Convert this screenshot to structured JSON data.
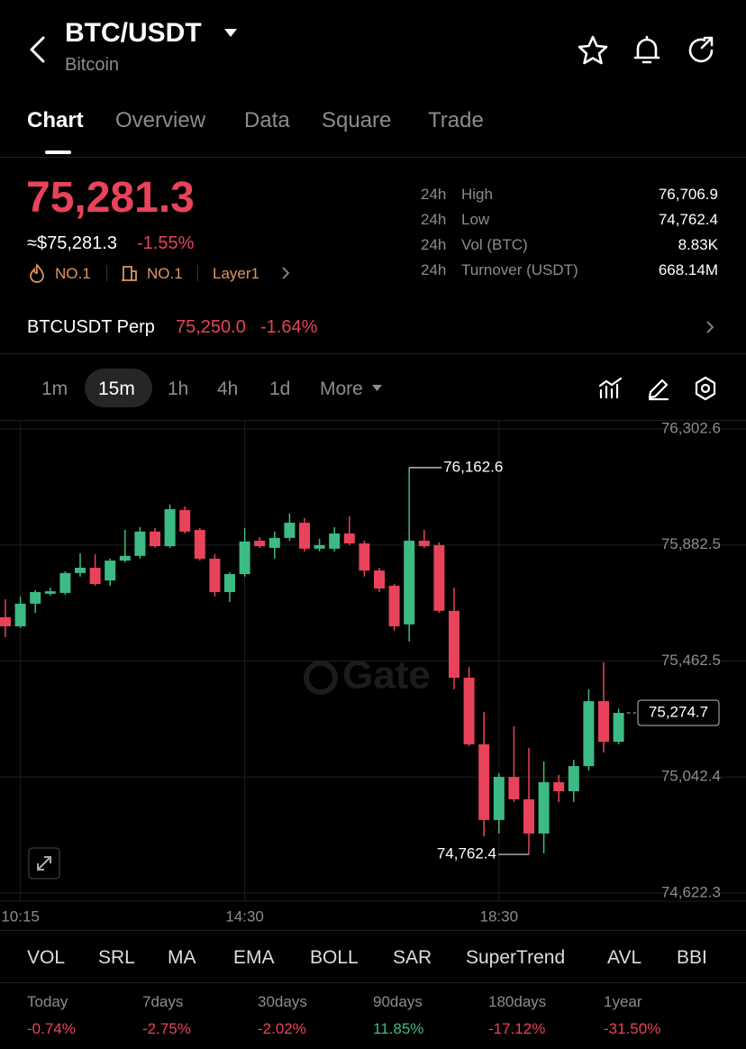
{
  "header": {
    "title": "BTC/USDT",
    "subtitle": "Bitcoin"
  },
  "tabs": [
    "Chart",
    "Overview",
    "Data",
    "Square",
    "Trade"
  ],
  "price": {
    "last": "75,281.3",
    "approx": "≈$75,281.3",
    "change": "-1.55%",
    "tags": [
      "NO.1",
      "NO.1",
      "Layer1"
    ]
  },
  "stats": [
    [
      "24h",
      "High",
      "76,706.9"
    ],
    [
      "24h",
      "Low",
      "74,762.4"
    ],
    [
      "24h",
      "Vol (BTC)",
      "8.83K"
    ],
    [
      "24h",
      "Turnover (USDT)",
      "668.14M"
    ]
  ],
  "perp": {
    "name": "BTCUSDT Perp",
    "price": "75,250.0",
    "change": "-1.64%"
  },
  "intervals": [
    "1m",
    "15m",
    "1h",
    "4h",
    "1d",
    "More"
  ],
  "chart_data": {
    "type": "candlestick",
    "watermark": "Gate",
    "categories": [
      null,
      "10:15",
      null,
      null,
      null,
      null,
      null,
      null,
      null,
      null,
      null,
      null,
      null,
      null,
      null,
      null,
      "14:30",
      null,
      null,
      null,
      null,
      null,
      null,
      null,
      null,
      null,
      null,
      null,
      null,
      null,
      null,
      null,
      null,
      "18:30",
      null,
      null,
      null,
      null,
      null,
      null,
      null,
      null
    ],
    "open": [
      75621,
      75588,
      75670,
      75706,
      75709,
      75781,
      75800,
      75754,
      75826,
      75843,
      75931,
      75878,
      76009,
      75937,
      75833,
      75712,
      75777,
      75898,
      75872,
      75908,
      75963,
      75869,
      75869,
      75924,
      75888,
      75790,
      75735,
      75595,
      75898,
      75882,
      75644,
      75402,
      75161,
      74887,
      75043,
      74962,
      74838,
      75024,
      74991,
      75082,
      75317,
      75170
    ],
    "high": [
      75686,
      75696,
      75719,
      75728,
      75787,
      75852,
      75849,
      75833,
      75937,
      75947,
      75944,
      76029,
      76022,
      75944,
      75849,
      75784,
      75944,
      75911,
      75931,
      75996,
      75980,
      75905,
      75947,
      75986,
      75898,
      75800,
      75741,
      76162.6,
      75937,
      75892,
      75728,
      75441,
      75278,
      75056,
      75226,
      75148,
      75099,
      75050,
      75105,
      75360,
      75458,
      75290
    ],
    "low": [
      75549,
      75582,
      75637,
      75699,
      75702,
      75768,
      75735,
      75735,
      75820,
      75833,
      75872,
      75872,
      75924,
      75826,
      75696,
      75676,
      75768,
      75872,
      75833,
      75898,
      75859,
      75859,
      75859,
      75882,
      75768,
      75712,
      75572,
      75533,
      75872,
      75637,
      75360,
      75154,
      74828,
      74838,
      74952,
      74762.4,
      74766,
      74952,
      74952,
      75066,
      75131,
      75161
    ],
    "close": [
      75588,
      75670,
      75712,
      75715,
      75781,
      75800,
      75741,
      75826,
      75843,
      75931,
      75878,
      76012,
      75931,
      75833,
      75712,
      75777,
      75895,
      75878,
      75908,
      75963,
      75869,
      75882,
      75924,
      75888,
      75790,
      75725,
      75588,
      75898,
      75878,
      75644,
      75402,
      75161,
      74887,
      75043,
      74962,
      74838,
      75024,
      74991,
      75082,
      75317,
      75170,
      75274.7
    ],
    "up_color": "#3dbb84",
    "down_color": "#e8435a",
    "ylim": [
      74593,
      76335
    ],
    "yticks": [
      {
        "value": 74622.3,
        "label": "74,622.3"
      },
      {
        "value": 75042.4,
        "label": "75,042.4"
      },
      {
        "value": 75462.5,
        "label": "75,462.5"
      },
      {
        "value": 75882.5,
        "label": "75,882.5"
      },
      {
        "value": 76302.6,
        "label": "76,302.6"
      }
    ],
    "grid": true,
    "high_label": "76,162.6",
    "low_label": "74,762.4",
    "last_label": "75,274.7"
  },
  "indicators": [
    "VOL",
    "SRL",
    "MA",
    "EMA",
    "BOLL",
    "SAR",
    "SuperTrend",
    "AVL",
    "BBI"
  ],
  "performance": [
    {
      "label": "Today",
      "value": "-0.74%"
    },
    {
      "label": "7days",
      "value": "-2.75%"
    },
    {
      "label": "30days",
      "value": "-2.02%"
    },
    {
      "label": "90days",
      "value": "11.85%"
    },
    {
      "label": "180days",
      "value": "-17.12%"
    },
    {
      "label": "1year",
      "value": "-31.50%"
    }
  ]
}
